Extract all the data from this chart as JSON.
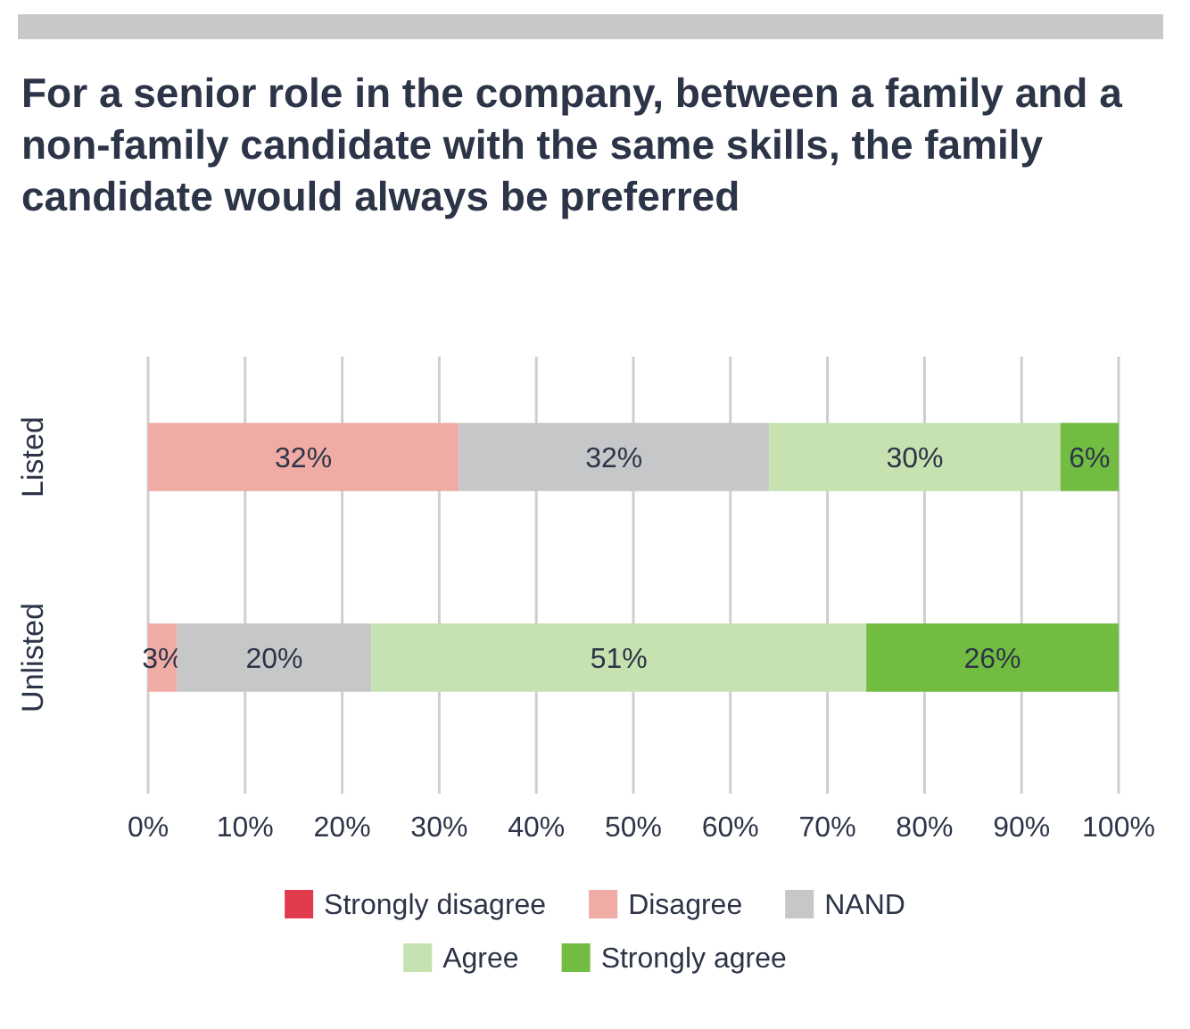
{
  "chart_data": {
    "type": "bar",
    "orientation": "horizontal",
    "stacked": true,
    "title": "For a senior role in the company, between a family and a non-family candidate with the same skills, the family candidate would always be preferred",
    "categories": [
      "Listed",
      "Unlisted"
    ],
    "series": [
      {
        "name": "Strongly disagree",
        "color": "#e03c4e",
        "values": [
          0,
          0
        ],
        "value_labels": [
          null,
          null
        ]
      },
      {
        "name": "Disagree",
        "color": "#f0aca4",
        "values": [
          32,
          3
        ],
        "value_labels": [
          "32%",
          "3%"
        ]
      },
      {
        "name": "NAND",
        "color": "#c6c7c9",
        "values": [
          32,
          20
        ],
        "value_labels": [
          "32%",
          "20%"
        ]
      },
      {
        "name": "Agree",
        "color": "#c5e2b0",
        "values": [
          30,
          51
        ],
        "value_labels": [
          "30%",
          "51%"
        ]
      },
      {
        "name": "Strongly agree",
        "color": "#72bd41",
        "values": [
          6,
          26
        ],
        "value_labels": [
          "6%",
          "26%"
        ]
      }
    ],
    "xlim": [
      0,
      100
    ],
    "xticks": [
      {
        "value": 0,
        "label": "0%"
      },
      {
        "value": 10,
        "label": "10%"
      },
      {
        "value": 20,
        "label": "20%"
      },
      {
        "value": 30,
        "label": "30%"
      },
      {
        "value": 40,
        "label": "40%"
      },
      {
        "value": 50,
        "label": "50%"
      },
      {
        "value": 60,
        "label": "60%"
      },
      {
        "value": 70,
        "label": "70%"
      },
      {
        "value": 80,
        "label": "80%"
      },
      {
        "value": 90,
        "label": "90%"
      },
      {
        "value": 100,
        "label": "100%"
      }
    ],
    "grid": "x",
    "legend": "bottom"
  }
}
